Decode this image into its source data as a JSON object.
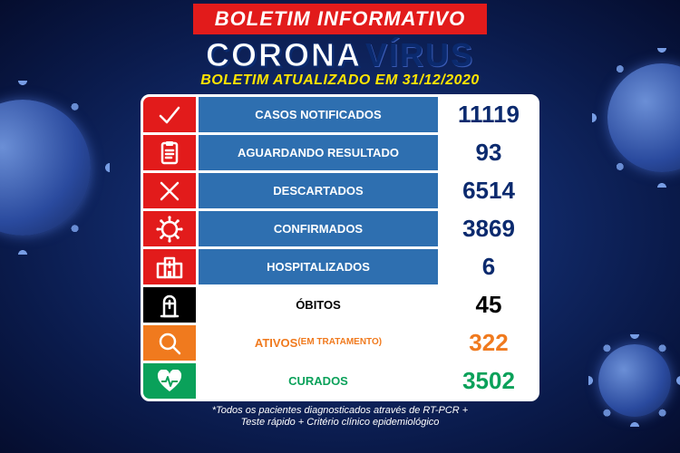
{
  "header": {
    "banner": "BOLETIM INFORMATIVO",
    "title_a": "CORONA",
    "title_b": "VÍRUS",
    "subtitle_prefix": "BOLETIM ATUALIZADO EM ",
    "date": "31/12/2020"
  },
  "colors": {
    "red": "#e21b1b",
    "blue_light": "#2e6fb0",
    "blue_dark": "#0b2a6e",
    "black": "#000000",
    "orange": "#f07a1e",
    "green": "#0aa15a",
    "white": "#ffffff",
    "yellow": "#ffe400"
  },
  "rows": [
    {
      "icon": "check",
      "icon_bg": "#e21b1b",
      "label": "CASOS NOTIFICADOS",
      "label_bg": "#2e6fb0",
      "label_color": "#ffffff",
      "value": "11119",
      "value_bg": "#ffffff",
      "value_color": "#0b2a6e"
    },
    {
      "icon": "clipboard",
      "icon_bg": "#e21b1b",
      "label": "AGUARDANDO RESULTADO",
      "label_bg": "#2e6fb0",
      "label_color": "#ffffff",
      "value": "93",
      "value_bg": "#ffffff",
      "value_color": "#0b2a6e"
    },
    {
      "icon": "cross",
      "icon_bg": "#e21b1b",
      "label": "DESCARTADOS",
      "label_bg": "#2e6fb0",
      "label_color": "#ffffff",
      "value": "6514",
      "value_bg": "#ffffff",
      "value_color": "#0b2a6e"
    },
    {
      "icon": "virus",
      "icon_bg": "#e21b1b",
      "label": "CONFIRMADOS",
      "label_bg": "#2e6fb0",
      "label_color": "#ffffff",
      "value": "3869",
      "value_bg": "#ffffff",
      "value_color": "#0b2a6e"
    },
    {
      "icon": "hospital",
      "icon_bg": "#e21b1b",
      "label": "HOSPITALIZADOS",
      "label_bg": "#2e6fb0",
      "label_color": "#ffffff",
      "value": "6",
      "value_bg": "#ffffff",
      "value_color": "#0b2a6e"
    },
    {
      "icon": "grave",
      "icon_bg": "#000000",
      "label": "ÓBITOS",
      "label_bg": "#ffffff",
      "label_color": "#000000",
      "value": "45",
      "value_bg": "#ffffff",
      "value_color": "#000000"
    },
    {
      "icon": "magnifier",
      "icon_bg": "#f07a1e",
      "label": "ATIVOS",
      "sublabel": "(EM TRATAMENTO)",
      "label_bg": "#ffffff",
      "label_color": "#f07a1e",
      "value": "322",
      "value_bg": "#ffffff",
      "value_color": "#f07a1e"
    },
    {
      "icon": "heart",
      "icon_bg": "#0aa15a",
      "label": "CURADOS",
      "label_bg": "#ffffff",
      "label_color": "#0aa15a",
      "value": "3502",
      "value_bg": "#ffffff",
      "value_color": "#0aa15a"
    }
  ],
  "footnote_l1": "*Todos os pacientes diagnosticados através de RT-PCR +",
  "footnote_l2": "Teste rápido + Critério clínico epidemiológico"
}
